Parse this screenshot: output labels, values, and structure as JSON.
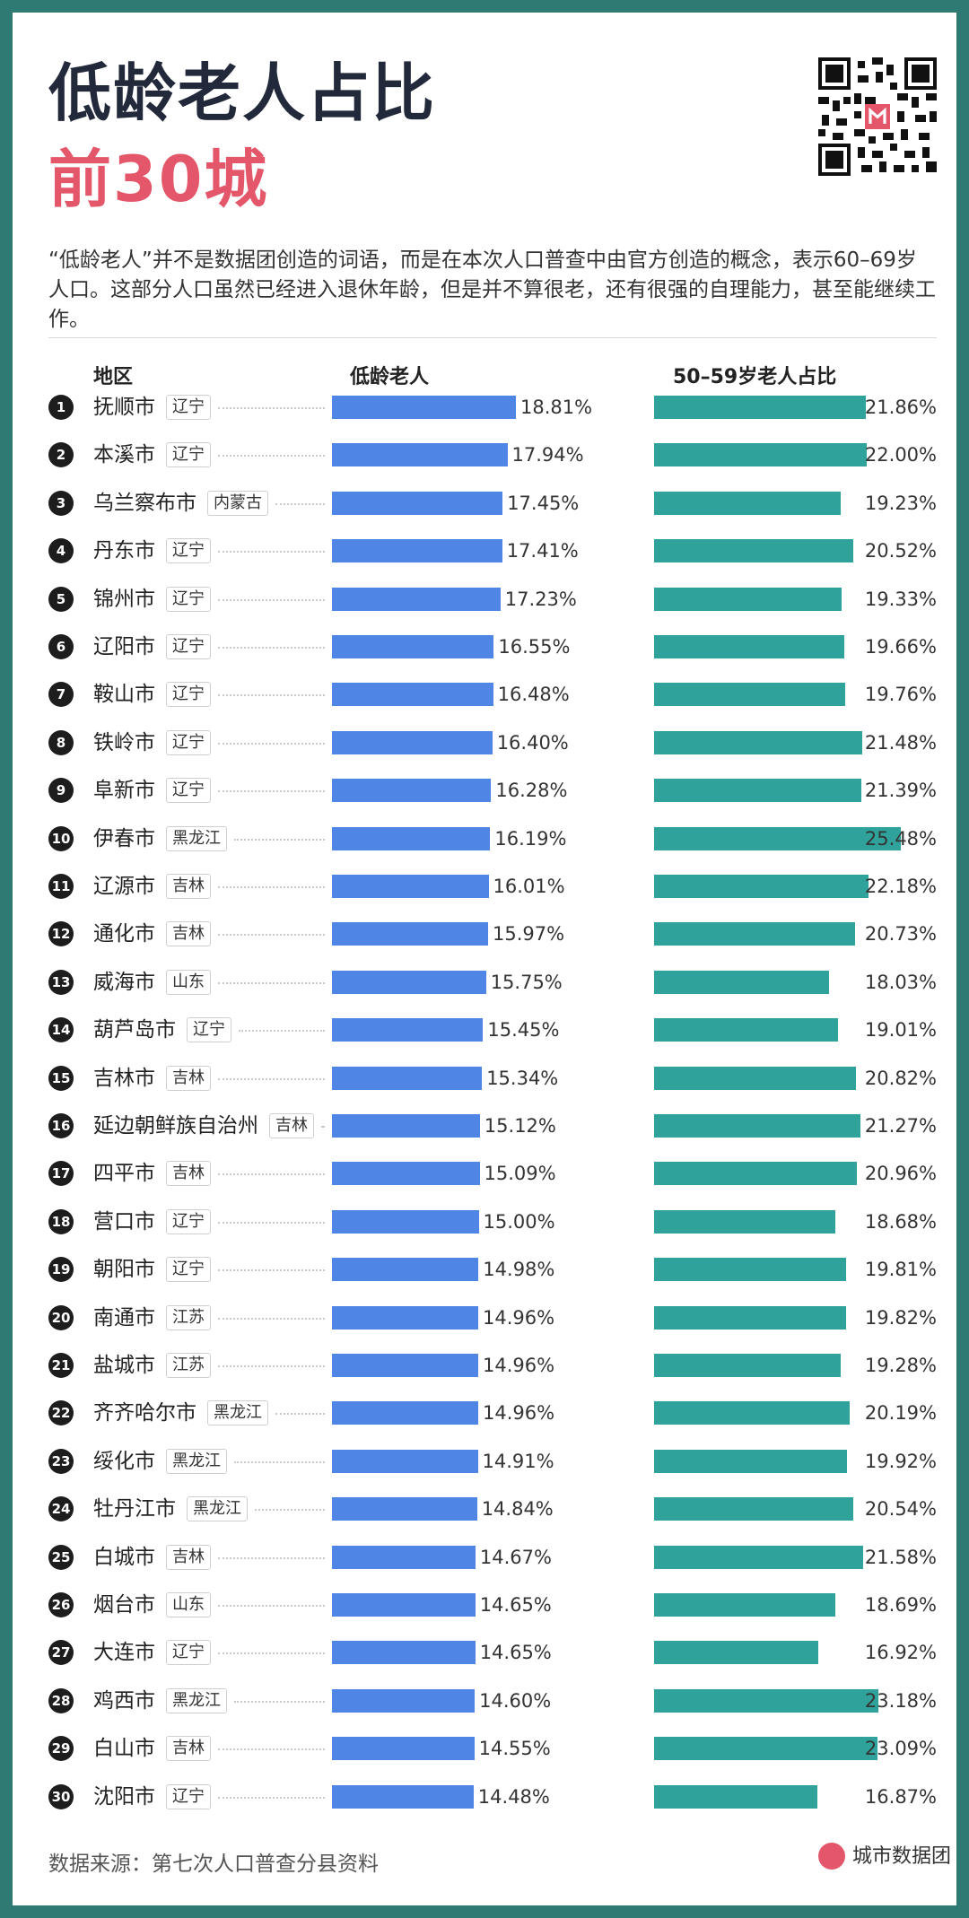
{
  "title": "低龄老人占比",
  "subtitle": "前30城",
  "intro": "“低龄老人”并不是数据团创造的词语，而是在本次人口普查中由官方创造的概念，表示60–69岁人口。这部分人口虽然已经进入退休年龄，但是并不算很老，还有很强的自理能力，甚至能继续工作。",
  "headers": {
    "region": "地区",
    "col1": "低龄老人",
    "col2": "50–59岁老人占比"
  },
  "source": "数据来源：第七次人口普查分县资料",
  "brand": "城市数据团",
  "colors": {
    "bar1": "#4f86e6",
    "bar2": "#2fa39b",
    "accent": "#e4576a",
    "frame": "#2f7a73"
  },
  "chart_data": {
    "type": "bar",
    "orientation": "horizontal",
    "categories": [
      "抚顺市",
      "本溪市",
      "乌兰察布市",
      "丹东市",
      "锦州市",
      "辽阳市",
      "鞍山市",
      "铁岭市",
      "阜新市",
      "伊春市",
      "辽源市",
      "通化市",
      "威海市",
      "葫芦岛市",
      "吉林市",
      "延边朝鲜族自治州",
      "四平市",
      "营口市",
      "朝阳市",
      "南通市",
      "盐城市",
      "齐齐哈尔市",
      "绥化市",
      "牡丹江市",
      "白城市",
      "烟台市",
      "大连市",
      "鸡西市",
      "白山市",
      "沈阳市"
    ],
    "provinces": [
      "辽宁",
      "辽宁",
      "内蒙古",
      "辽宁",
      "辽宁",
      "辽宁",
      "辽宁",
      "辽宁",
      "辽宁",
      "黑龙江",
      "吉林",
      "吉林",
      "山东",
      "辽宁",
      "吉林",
      "吉林",
      "吉林",
      "辽宁",
      "辽宁",
      "江苏",
      "江苏",
      "黑龙江",
      "黑龙江",
      "黑龙江",
      "吉林",
      "山东",
      "辽宁",
      "黑龙江",
      "吉林",
      "辽宁"
    ],
    "series": [
      {
        "name": "低龄老人",
        "values": [
          18.81,
          17.94,
          17.45,
          17.41,
          17.23,
          16.55,
          16.48,
          16.4,
          16.28,
          16.19,
          16.01,
          15.97,
          15.75,
          15.45,
          15.34,
          15.12,
          15.09,
          15.0,
          14.98,
          14.96,
          14.96,
          14.96,
          14.91,
          14.84,
          14.67,
          14.65,
          14.65,
          14.6,
          14.55,
          14.48
        ]
      },
      {
        "name": "50–59岁老人占比",
        "values": [
          21.86,
          22.0,
          19.23,
          20.52,
          19.33,
          19.66,
          19.76,
          21.48,
          21.39,
          25.48,
          22.18,
          20.73,
          18.03,
          19.01,
          20.82,
          21.27,
          20.96,
          18.68,
          19.81,
          19.82,
          19.28,
          20.19,
          19.92,
          20.54,
          21.58,
          18.69,
          16.92,
          23.18,
          23.09,
          16.87
        ]
      }
    ]
  }
}
